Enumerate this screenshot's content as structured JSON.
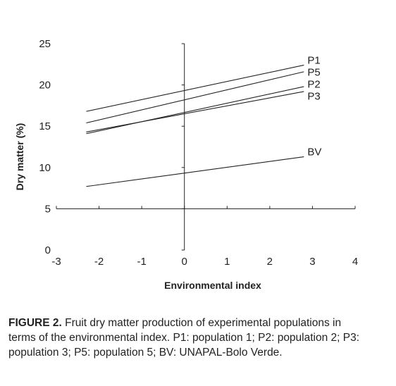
{
  "chart_data": {
    "type": "line",
    "xlabel": "Environmental index",
    "ylabel": "Dry matter (%)",
    "xlim": [
      -3,
      4
    ],
    "ylim": [
      0,
      25
    ],
    "x_ticks": [
      "-3",
      "-2",
      "-1",
      "0",
      "1",
      "2",
      "3",
      "4"
    ],
    "y_ticks": [
      "0",
      "5",
      "10",
      "15",
      "20",
      "25"
    ],
    "series": [
      {
        "name": "P1",
        "x": [
          -2.3,
          2.8
        ],
        "y": [
          16.8,
          22.4
        ]
      },
      {
        "name": "P5",
        "x": [
          -2.3,
          2.8
        ],
        "y": [
          15.4,
          21.6
        ]
      },
      {
        "name": "P2",
        "x": [
          -2.3,
          2.8
        ],
        "y": [
          14.1,
          19.8
        ]
      },
      {
        "name": "P3",
        "x": [
          -2.3,
          2.8
        ],
        "y": [
          14.3,
          19.2
        ]
      },
      {
        "name": "BV",
        "x": [
          -2.3,
          2.8
        ],
        "y": [
          7.7,
          11.3
        ]
      }
    ],
    "line_color": "#222222"
  },
  "caption": {
    "figure_number": "FIGURE 2.",
    "text": "Fruit dry matter production of experimental populations in terms of the environmental index. P1: population 1; P2: population 2; P3: population 3; P5: population 5; BV: UNAPAL-Bolo Verde."
  }
}
